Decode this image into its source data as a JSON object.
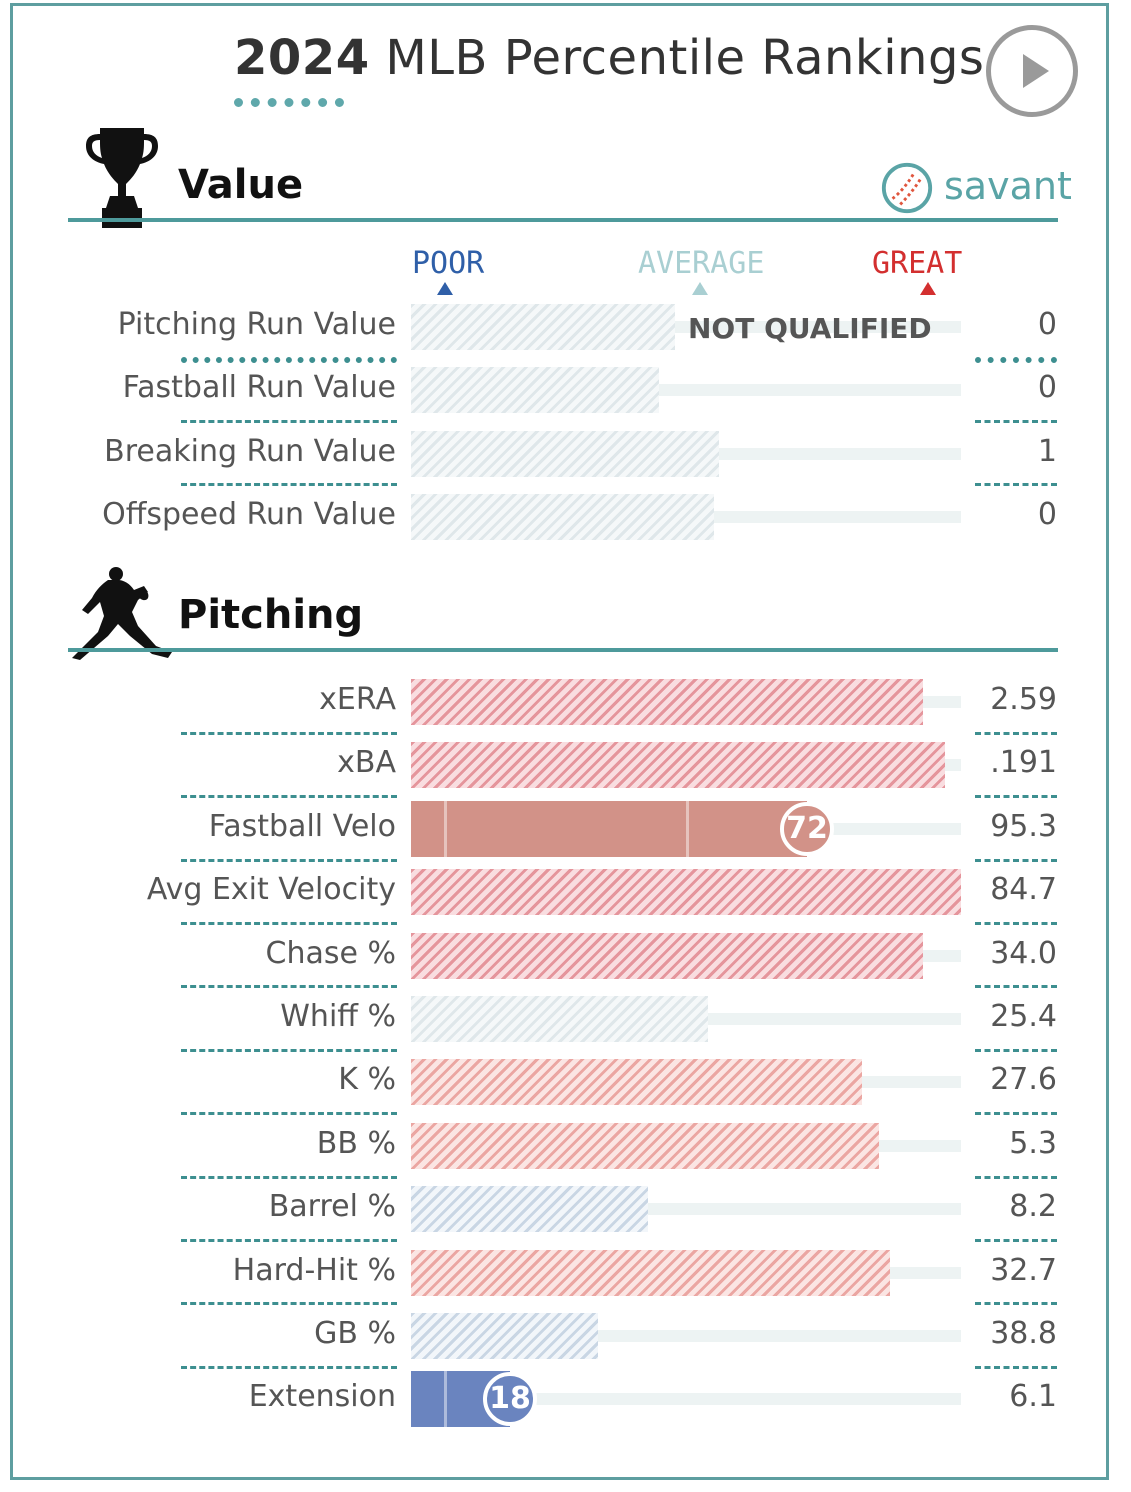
{
  "header": {
    "year": "2024",
    "title_rest": "MLB Percentile Rankings",
    "play_icon": "play-icon"
  },
  "sections": {
    "value": {
      "title": "Value",
      "icon": "trophy-icon"
    },
    "pitching": {
      "title": "Pitching",
      "icon": "pitcher-icon"
    }
  },
  "brand": {
    "text": "savant",
    "icon": "baseball-icon"
  },
  "scale": {
    "poor": "POOR",
    "average": "AVERAGE",
    "great": "GREAT"
  },
  "colors": {
    "poor": "#2f5fa8",
    "average": "#a9cfd2",
    "great": "#d32f2f",
    "accent": "#4e9a9b",
    "fastball_velo_bar": "#d29288",
    "extension_bar": "#6a84bf"
  },
  "not_qualified_label": "NOT QUALIFIED",
  "chart_data": [
    {
      "type": "bar",
      "title": "Value",
      "xlim": [
        0,
        100
      ],
      "categories": [
        "Pitching Run Value",
        "Fastball Run Value",
        "Breaking Run Value",
        "Offspeed Run Value"
      ],
      "percentiles": [
        48,
        45,
        56,
        55
      ],
      "display_values": [
        "0",
        "0",
        "1",
        "0"
      ],
      "qualified": [
        false,
        false,
        false,
        false
      ]
    },
    {
      "type": "bar",
      "title": "Pitching",
      "xlim": [
        0,
        100
      ],
      "categories": [
        "xERA",
        "xBA",
        "Fastball Velo",
        "Avg Exit Velocity",
        "Chase %",
        "Whiff %",
        "K %",
        "BB %",
        "Barrel %",
        "Hard-Hit %",
        "GB %",
        "Extension"
      ],
      "percentiles": [
        93,
        97,
        72,
        100,
        93,
        54,
        82,
        85,
        43,
        87,
        34,
        18
      ],
      "display_values": [
        "2.59",
        ".191",
        "95.3",
        "84.7",
        "34.0",
        "25.4",
        "27.6",
        "5.3",
        "8.2",
        "32.7",
        "38.8",
        "6.1"
      ],
      "labeled_percentiles": [
        "",
        "",
        "72",
        "",
        "",
        "",
        "",
        "",
        "",
        "",
        "",
        "18"
      ],
      "qualified": [
        false,
        false,
        true,
        false,
        false,
        false,
        false,
        false,
        false,
        false,
        false,
        true
      ]
    }
  ]
}
